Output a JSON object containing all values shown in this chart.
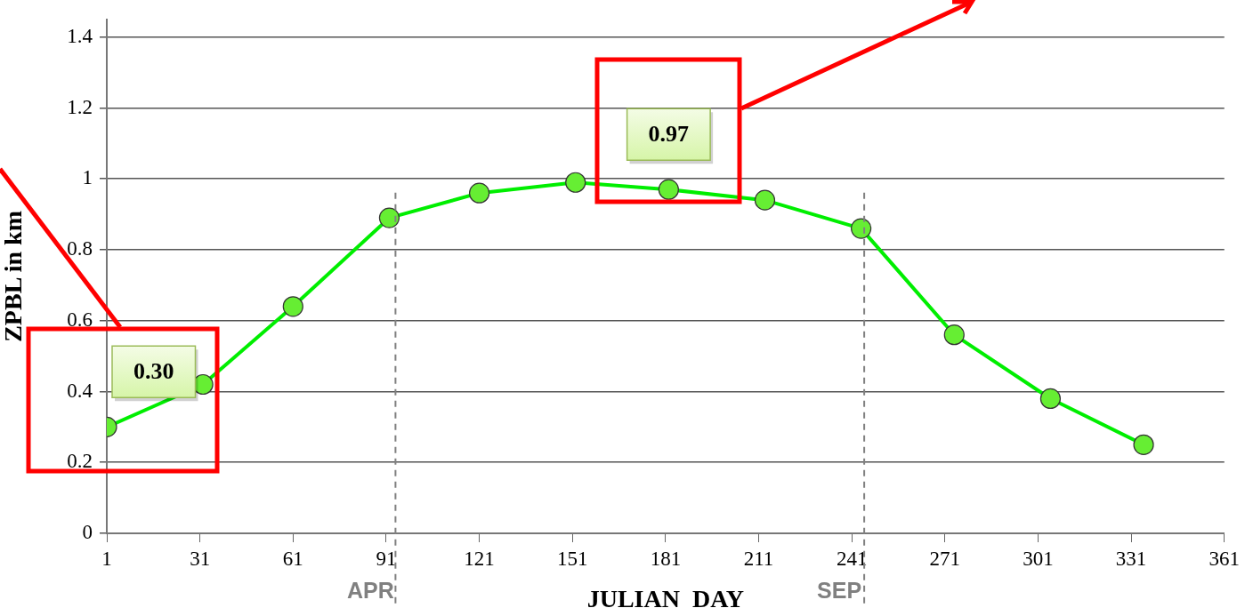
{
  "chart_data": {
    "type": "line",
    "xlabel": "JULIAN  DAY",
    "ylabel": "ZPBL in km",
    "x": [
      1,
      32,
      61,
      92,
      121,
      152,
      182,
      213,
      244,
      274,
      305,
      335
    ],
    "series": [
      {
        "color": "#00ee00",
        "values": [
          0.3,
          0.42,
          0.64,
          0.89,
          0.96,
          0.99,
          0.97,
          0.94,
          0.86,
          0.56,
          0.38,
          0.25
        ]
      }
    ],
    "xlim": [
      1,
      361
    ],
    "xticks": [
      1,
      31,
      61,
      91,
      121,
      151,
      181,
      211,
      241,
      271,
      301,
      331,
      361
    ],
    "ylim": [
      0,
      1.45
    ],
    "yticks": [
      0,
      0.2,
      0.4,
      0.6,
      0.8,
      1,
      1.2,
      1.4
    ],
    "grid": "y",
    "legend": false,
    "marker": "circle",
    "line_style": "solid",
    "ref_lines": [
      {
        "axis": "x",
        "value": 94,
        "label": "APR",
        "color": "#808080",
        "line_style": "dashed"
      },
      {
        "axis": "x",
        "value": 245,
        "label": "SEP",
        "color": "#808080",
        "line_style": "dashed"
      }
    ],
    "annotations": [
      {
        "text": "0.30",
        "x": 1,
        "y": 0.3
      },
      {
        "text": "0.97",
        "x": 182,
        "y": 0.97
      }
    ]
  }
}
